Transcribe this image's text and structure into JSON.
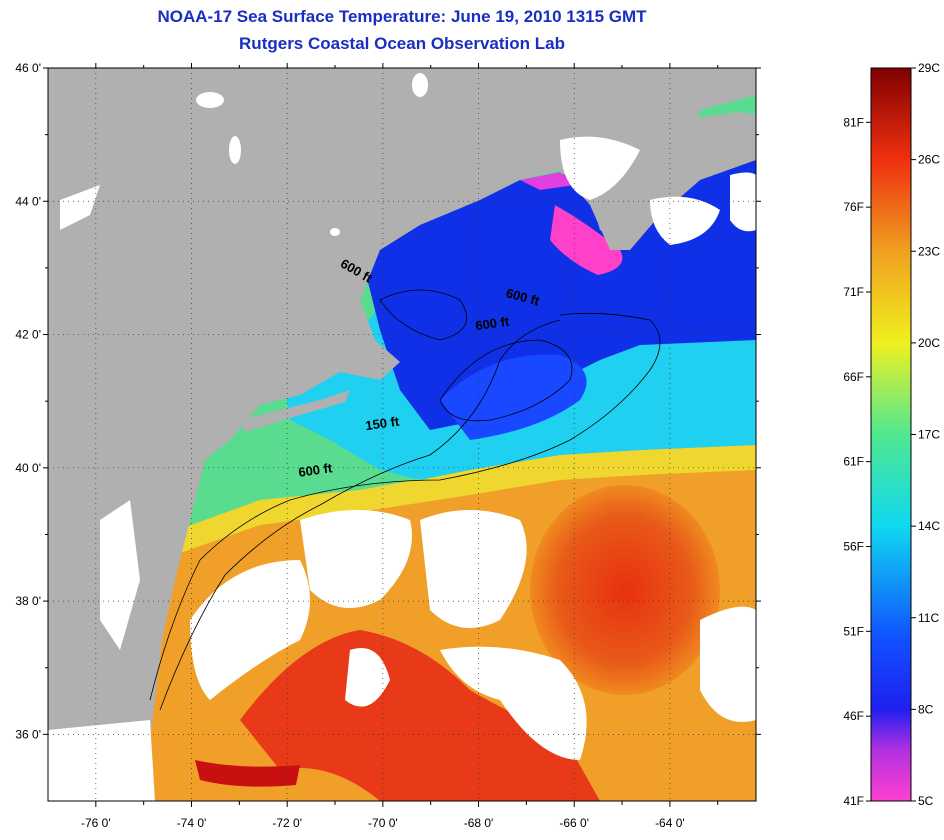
{
  "title": "NOAA-17 Sea Surface Temperature:  June 19, 2010 1315 GMT",
  "subtitle": "Rutgers Coastal Ocean Observation Lab",
  "map": {
    "lon_range": [
      -77,
      -62.2
    ],
    "lat_range": [
      35,
      46
    ],
    "lat_ticks": [
      {
        "value": 46,
        "label": "46 0'"
      },
      {
        "value": 44,
        "label": "44 0'"
      },
      {
        "value": 42,
        "label": "42 0'"
      },
      {
        "value": 40,
        "label": "40 0'"
      },
      {
        "value": 38,
        "label": "38 0'"
      },
      {
        "value": 36,
        "label": "36 0'"
      }
    ],
    "lon_ticks": [
      {
        "value": -76,
        "label": "-76 0'"
      },
      {
        "value": -74,
        "label": "-74 0'"
      },
      {
        "value": -72,
        "label": "-72 0'"
      },
      {
        "value": -70,
        "label": "-70 0'"
      },
      {
        "value": -68,
        "label": "-68 0'"
      },
      {
        "value": -66,
        "label": "-66 0'"
      },
      {
        "value": -64,
        "label": "-64 0'"
      }
    ],
    "contour_labels": [
      {
        "text": "600 ft",
        "lon": -70.6,
        "lat": 42.9
      },
      {
        "text": "600 ft",
        "lon": -67.1,
        "lat": 42.5
      },
      {
        "text": "600 ft",
        "lon": -67.7,
        "lat": 42.1
      },
      {
        "text": "150 ft",
        "lon": -70.0,
        "lat": 40.6
      },
      {
        "text": "600 ft",
        "lon": -71.4,
        "lat": 39.9
      }
    ],
    "colors": {
      "land": "#b0b0b0",
      "cloud": "#ffffff",
      "cold": "#1020e0",
      "cool": "#10c8f0",
      "mild": "#60e080",
      "warm": "#f0a020",
      "hot": "#e02010"
    }
  },
  "colorbar": {
    "celsius_ticks": [
      {
        "value": 29,
        "label": "29C"
      },
      {
        "value": 26,
        "label": "26C"
      },
      {
        "value": 23,
        "label": "23C"
      },
      {
        "value": 20,
        "label": "20C"
      },
      {
        "value": 17,
        "label": "17C"
      },
      {
        "value": 14,
        "label": "14C"
      },
      {
        "value": 11,
        "label": "11C"
      },
      {
        "value": 8,
        "label": "8C"
      },
      {
        "value": 5,
        "label": "5C"
      }
    ],
    "fahrenheit_ticks": [
      {
        "value": 81,
        "label": "81F"
      },
      {
        "value": 76,
        "label": "76F"
      },
      {
        "value": 71,
        "label": "71F"
      },
      {
        "value": 66,
        "label": "66F"
      },
      {
        "value": 61,
        "label": "61F"
      },
      {
        "value": 56,
        "label": "56F"
      },
      {
        "value": 51,
        "label": "51F"
      },
      {
        "value": 46,
        "label": "46F"
      },
      {
        "value": 41,
        "label": "41F"
      }
    ]
  }
}
